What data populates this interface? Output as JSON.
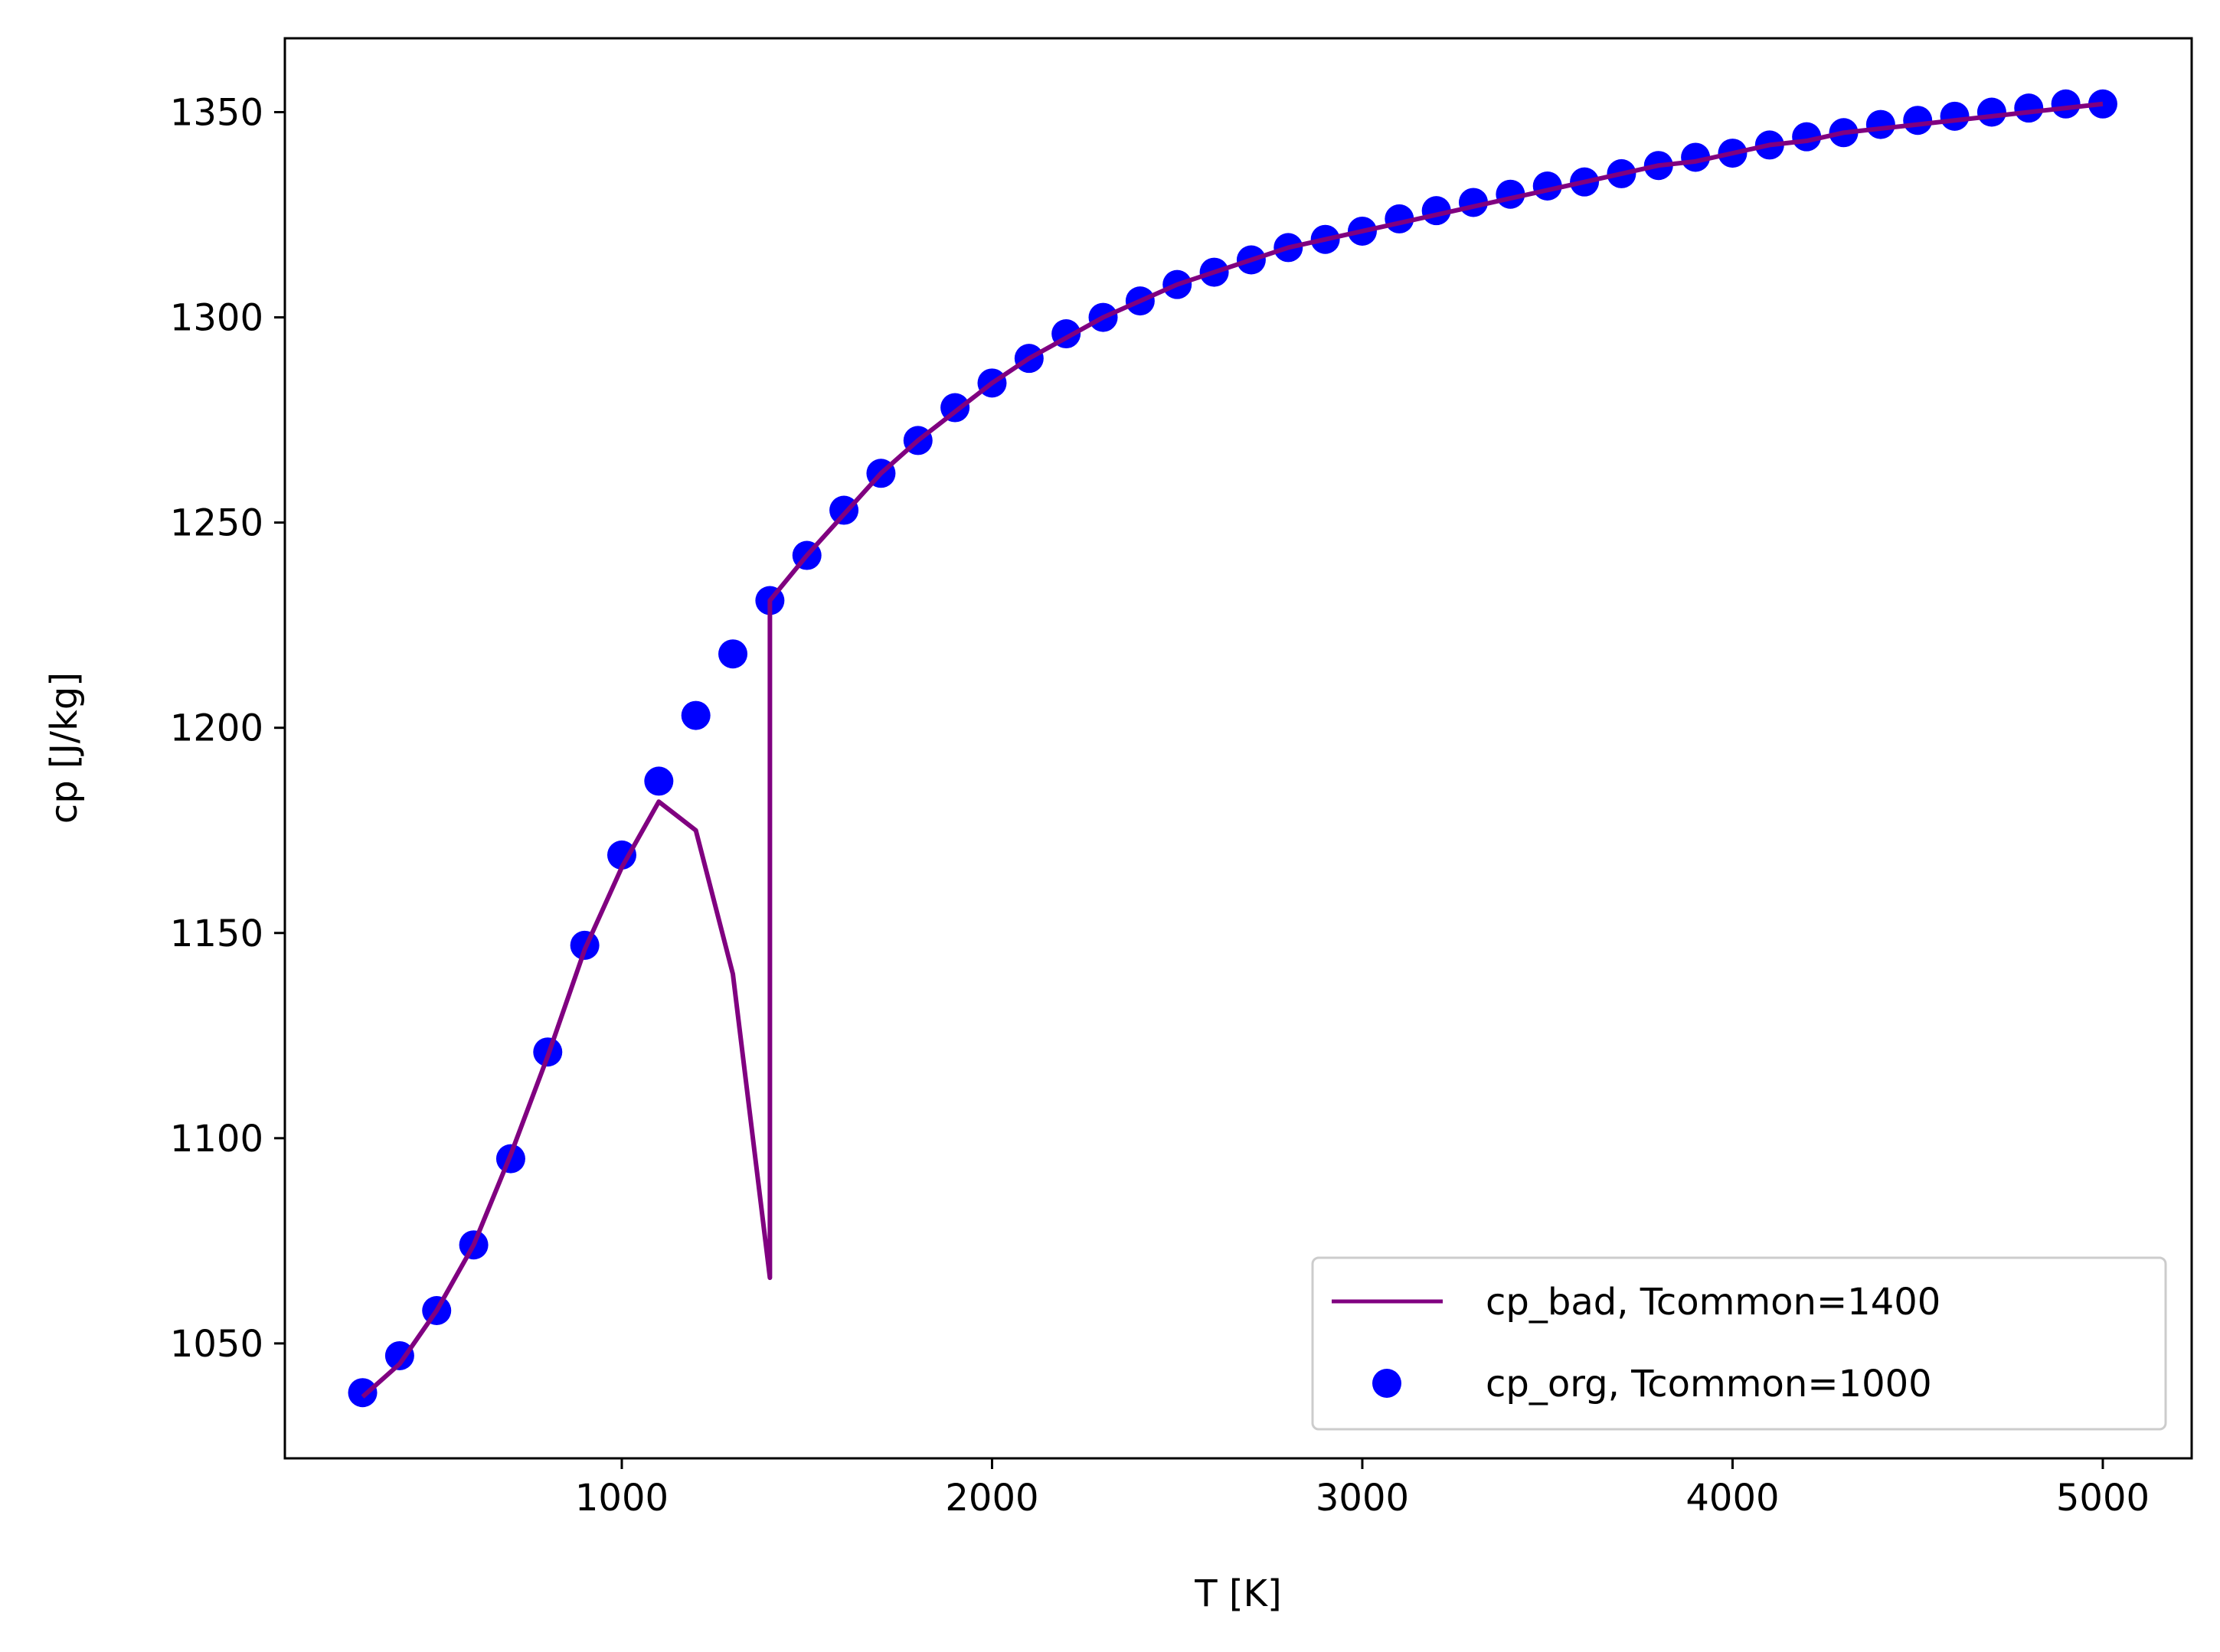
{
  "chart_data": {
    "type": "line",
    "title": "",
    "xlabel": "T [K]",
    "ylabel": "cp [J/kg]",
    "xlim": [
      90,
      5240
    ],
    "ylim": [
      1022,
      1368
    ],
    "xticks": [
      1000,
      2000,
      3000,
      4000,
      5000
    ],
    "yticks": [
      1050,
      1100,
      1150,
      1200,
      1250,
      1300,
      1350
    ],
    "grid": false,
    "legend_position": "lower-right",
    "series": [
      {
        "name": "cp_bad, Tcommon=1400",
        "kind": "line",
        "color": "#800080",
        "x": [
          300,
          400,
          500,
          600,
          700,
          800,
          900,
          1000,
          1100,
          1200,
          1300,
          1400,
          1400,
          1500,
          1600,
          1700,
          1800,
          1900,
          2000,
          2100,
          2200,
          2300,
          2400,
          2500,
          2600,
          2700,
          2800,
          2900,
          3000,
          3100,
          3200,
          3300,
          3400,
          3500,
          3600,
          3700,
          3800,
          3900,
          4000,
          4100,
          4200,
          4300,
          4400,
          4500,
          4600,
          4700,
          4800,
          4900,
          5000
        ],
        "y": [
          1037,
          1045,
          1058,
          1074,
          1096,
          1120,
          1146,
          1166,
          1182,
          1175,
          1140,
          1066,
          1231,
          1242,
          1252,
          1262,
          1270,
          1277,
          1284,
          1290,
          1295,
          1300,
          1304,
          1308,
          1311,
          1314,
          1317,
          1319,
          1321,
          1323,
          1325,
          1327,
          1329,
          1331,
          1333,
          1335,
          1337,
          1338,
          1340,
          1342,
          1343,
          1345,
          1346,
          1347,
          1348,
          1349,
          1350,
          1351,
          1352
        ]
      },
      {
        "name": "cp_org, Tcommon=1000",
        "kind": "scatter",
        "color": "#0000ff",
        "x": [
          300,
          400,
          500,
          600,
          700,
          800,
          900,
          1000,
          1100,
          1200,
          1300,
          1400,
          1500,
          1600,
          1700,
          1800,
          1900,
          2000,
          2100,
          2200,
          2300,
          2400,
          2500,
          2600,
          2700,
          2800,
          2900,
          3000,
          3100,
          3200,
          3300,
          3400,
          3500,
          3600,
          3700,
          3800,
          3900,
          4000,
          4100,
          4200,
          4300,
          4400,
          4500,
          4600,
          4700,
          4800,
          4900,
          5000
        ],
        "y": [
          1038,
          1047,
          1058,
          1074,
          1095,
          1121,
          1147,
          1169,
          1187,
          1203,
          1218,
          1231,
          1242,
          1253,
          1262,
          1270,
          1278,
          1284,
          1290,
          1296,
          1300,
          1304,
          1308,
          1311,
          1314,
          1317,
          1319,
          1321,
          1324,
          1326,
          1328,
          1330,
          1332,
          1333,
          1335,
          1337,
          1339,
          1340,
          1342,
          1344,
          1345,
          1347,
          1348,
          1349,
          1350,
          1351,
          1352,
          1352
        ]
      }
    ]
  }
}
